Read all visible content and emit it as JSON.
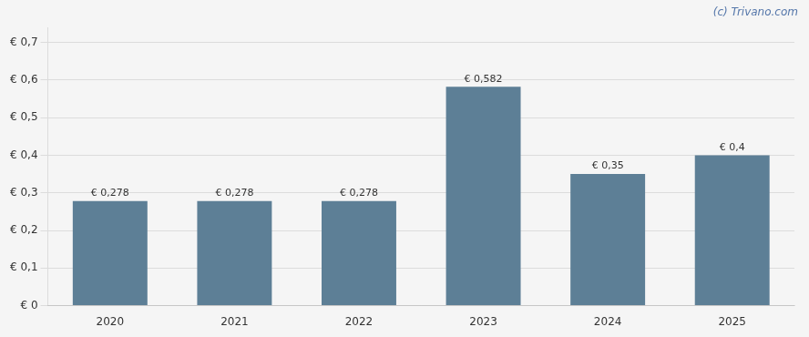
{
  "chart_data": {
    "type": "bar",
    "categories": [
      "2020",
      "2021",
      "2022",
      "2023",
      "2024",
      "2025"
    ],
    "values": [
      0.278,
      0.278,
      0.278,
      0.582,
      0.35,
      0.4
    ],
    "value_labels": [
      "€ 0,278",
      "€ 0,278",
      "€ 0,278",
      "€ 0,582",
      "€ 0,35",
      "€ 0,4"
    ],
    "color": "#5d7f96",
    "ylim": [
      0,
      0.74
    ],
    "yticks": [
      {
        "value": 0.0,
        "label": "€ 0"
      },
      {
        "value": 0.1,
        "label": "€ 0,1"
      },
      {
        "value": 0.2,
        "label": "€ 0,2"
      },
      {
        "value": 0.3,
        "label": "€ 0,3"
      },
      {
        "value": 0.4,
        "label": "€ 0,4"
      },
      {
        "value": 0.5,
        "label": "€ 0,5"
      },
      {
        "value": 0.6,
        "label": "€ 0,6"
      },
      {
        "value": 0.7,
        "label": "€ 0,7"
      }
    ],
    "grid": true,
    "data_labels": true,
    "annotations": [
      "(c) Trivano.com"
    ]
  }
}
